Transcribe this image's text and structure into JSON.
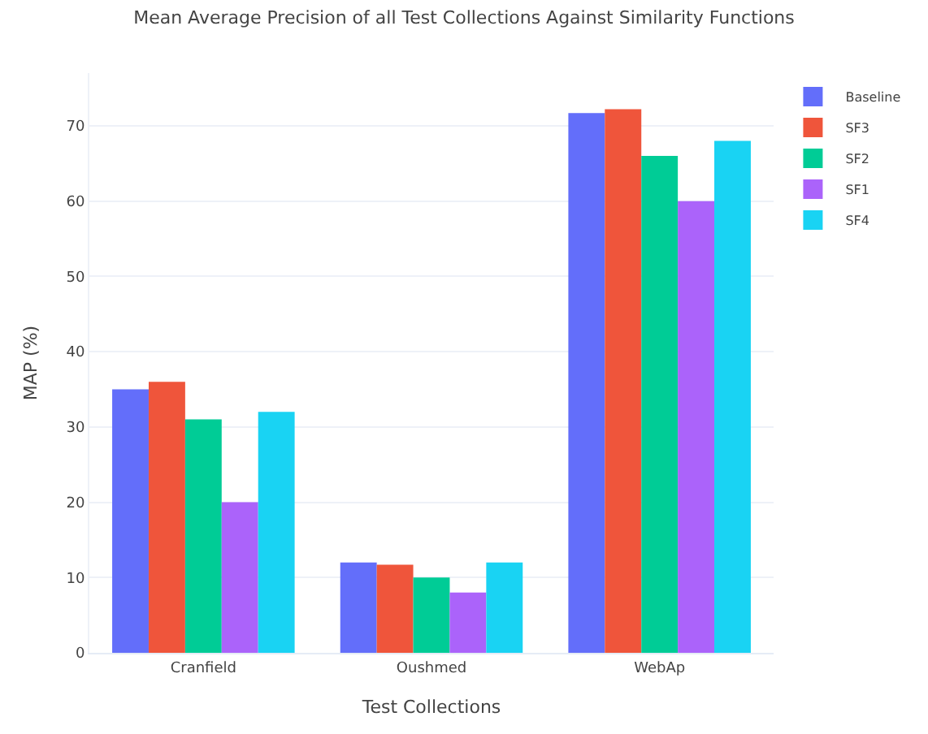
{
  "chart_data": {
    "type": "bar",
    "title": "Mean Average Precision of all Test Collections Against Similarity Functions",
    "xlabel": "Test Collections",
    "ylabel": "MAP (%)",
    "categories": [
      "Cranfield",
      "Oushmed",
      "WebAp"
    ],
    "series": [
      {
        "name": "Baseline",
        "color": "#636efa",
        "values": [
          35,
          12,
          71.7
        ]
      },
      {
        "name": "SF3",
        "color": "#ef553b",
        "values": [
          36,
          11.7,
          72.2
        ]
      },
      {
        "name": "SF2",
        "color": "#00cc96",
        "values": [
          31,
          10,
          66
        ]
      },
      {
        "name": "SF1",
        "color": "#ab63fa",
        "values": [
          20,
          8,
          60
        ]
      },
      {
        "name": "SF4",
        "color": "#19d3f3",
        "values": [
          32,
          12,
          68
        ]
      }
    ],
    "ylim": [
      0,
      77
    ],
    "yticks": [
      0,
      10,
      20,
      30,
      40,
      50,
      60,
      70
    ],
    "grid": "y",
    "legend": "top right"
  }
}
